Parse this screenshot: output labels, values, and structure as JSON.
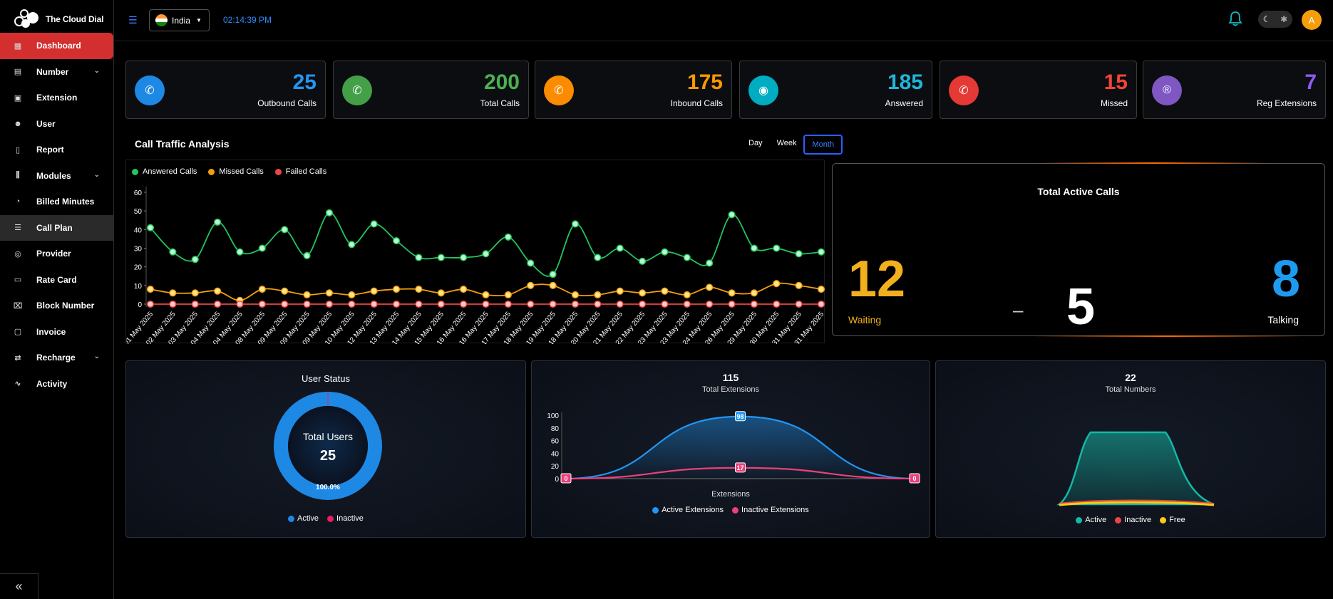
{
  "brand": {
    "name": "The Cloud Dial"
  },
  "header": {
    "country": "India",
    "time": "02:14:39 PM",
    "avatar_initial": "A"
  },
  "sidebar": {
    "items": [
      {
        "label": "Dashboard",
        "icon": "grid-icon",
        "active": true
      },
      {
        "label": "Number",
        "icon": "number-icon",
        "expandable": true
      },
      {
        "label": "Extension",
        "icon": "extension-icon"
      },
      {
        "label": "User",
        "icon": "users-icon"
      },
      {
        "label": "Report",
        "icon": "clipboard-icon"
      },
      {
        "label": "Modules",
        "icon": "sliders-icon",
        "expandable": true
      },
      {
        "label": "Billed Minutes",
        "icon": "stopwatch-icon"
      },
      {
        "label": "Call Plan",
        "icon": "list-icon"
      },
      {
        "label": "Provider",
        "icon": "provider-icon"
      },
      {
        "label": "Rate Card",
        "icon": "card-icon"
      },
      {
        "label": "Block Number",
        "icon": "block-phone-icon"
      },
      {
        "label": "Invoice",
        "icon": "invoice-icon"
      },
      {
        "label": "Recharge",
        "icon": "swap-icon",
        "expandable": true
      },
      {
        "label": "Activity",
        "icon": "activity-icon"
      }
    ]
  },
  "stats": [
    {
      "value": "25",
      "label": "Outbound Calls",
      "color": "#1e88e5",
      "value_color": "#2196f3",
      "icon": "outbound-call-icon"
    },
    {
      "value": "200",
      "label": "Total Calls",
      "color": "#43a047",
      "value_color": "#4caf50",
      "icon": "phone-icon"
    },
    {
      "value": "175",
      "label": "Inbound Calls",
      "color": "#fb8c00",
      "value_color": "#ff9800",
      "icon": "inbound-call-icon"
    },
    {
      "value": "185",
      "label": "Answered",
      "color": "#00acc1",
      "value_color": "#1eb7d9",
      "icon": "answered-icon"
    },
    {
      "value": "15",
      "label": "Missed",
      "color": "#e53935",
      "value_color": "#f44336",
      "icon": "missed-call-icon"
    },
    {
      "value": "7",
      "label": "Reg Extensions",
      "color": "#7e57c2",
      "value_color": "#8b5cf6",
      "icon": "registered-icon"
    }
  ],
  "traffic": {
    "title": "Call Traffic Analysis",
    "tabs": [
      "Day",
      "Week",
      "Month"
    ],
    "active_tab": "Month"
  },
  "active_calls": {
    "title": "Total Active Calls",
    "waiting": "12",
    "waiting_label": "Waiting",
    "separator": "–",
    "middle": "5",
    "talking": "8",
    "talking_label": "Talking"
  },
  "user_status": {
    "title": "User Status",
    "center_label": "Total Users",
    "center_value": "25",
    "percent_label": "100.0%",
    "legend": [
      "Active",
      "Inactive"
    ]
  },
  "extensions": {
    "total": "115",
    "subtitle": "Total Extensions",
    "xlabel": "Extensions",
    "legend": [
      "Active Extensions",
      "Inactive Extensions"
    ]
  },
  "numbers": {
    "total": "22",
    "subtitle": "Total Numbers",
    "legend": [
      "Active",
      "Inactive",
      "Free"
    ]
  },
  "chart_data": [
    {
      "type": "line",
      "title": "Call Traffic Analysis",
      "categories": [
        "01 May 2025",
        "02 May 2025",
        "03 May 2025",
        "04 May 2025",
        "04 May 2025",
        "08 May 2025",
        "09 May 2025",
        "09 May 2025",
        "09 May 2025",
        "10 May 2025",
        "12 May 2025",
        "13 May 2025",
        "14 May 2025",
        "15 May 2025",
        "16 May 2025",
        "16 May 2025",
        "17 May 2025",
        "18 May 2025",
        "19 May 2025",
        "18 May 2025",
        "20 May 2025",
        "21 May 2025",
        "22 May 2025",
        "23 May 2025",
        "23 May 2025",
        "24 May 2025",
        "26 May 2025",
        "29 May 2025",
        "30 May 2025",
        "31 May 2025",
        "31 May 2025"
      ],
      "ylim": [
        0,
        60
      ],
      "yticks": [
        0,
        10,
        20,
        30,
        40,
        50,
        60
      ],
      "grid": false,
      "legend_position": "top-left",
      "series": [
        {
          "name": "Answered Calls",
          "color": "#22c55e",
          "values": [
            41,
            28,
            24,
            44,
            28,
            30,
            40,
            26,
            49,
            32,
            43,
            34,
            25,
            25,
            25,
            27,
            36,
            22,
            16,
            43,
            25,
            30,
            23,
            28,
            25,
            22,
            48,
            30,
            30,
            27,
            28
          ]
        },
        {
          "name": "Missed Calls",
          "color": "#f59e0b",
          "values": [
            8,
            6,
            6,
            7,
            2,
            8,
            7,
            5,
            6,
            5,
            7,
            8,
            8,
            6,
            8,
            5,
            5,
            10,
            10,
            5,
            5,
            7,
            6,
            7,
            5,
            9,
            6,
            6,
            11,
            10,
            8
          ]
        },
        {
          "name": "Failed Calls",
          "color": "#ef4444",
          "values": [
            0,
            0,
            0,
            0,
            0,
            0,
            0,
            0,
            0,
            0,
            0,
            0,
            0,
            0,
            0,
            0,
            0,
            0,
            0,
            0,
            0,
            0,
            0,
            0,
            0,
            0,
            0,
            0,
            0,
            0,
            0
          ]
        }
      ]
    },
    {
      "type": "pie",
      "title": "User Status",
      "series": [
        {
          "name": "Active",
          "value": 25,
          "color": "#1e88e5"
        },
        {
          "name": "Inactive",
          "value": 0,
          "color": "#e91e63"
        }
      ]
    },
    {
      "type": "area",
      "title": "115",
      "subtitle": "Total Extensions",
      "xlabel": "Extensions",
      "ylim": [
        0,
        100
      ],
      "yticks": [
        0,
        20,
        40,
        60,
        80,
        100
      ],
      "series": [
        {
          "name": "Active Extensions",
          "color": "#2196f3",
          "values": [
            0,
            98,
            0
          ]
        },
        {
          "name": "Inactive Extensions",
          "color": "#ec407a",
          "values": [
            0,
            17,
            0
          ]
        }
      ]
    },
    {
      "type": "area",
      "title": "22",
      "subtitle": "Total Numbers",
      "series": [
        {
          "name": "Active",
          "color": "#14b8a6"
        },
        {
          "name": "Inactive",
          "color": "#ef4444"
        },
        {
          "name": "Free",
          "color": "#facc15"
        }
      ]
    }
  ]
}
